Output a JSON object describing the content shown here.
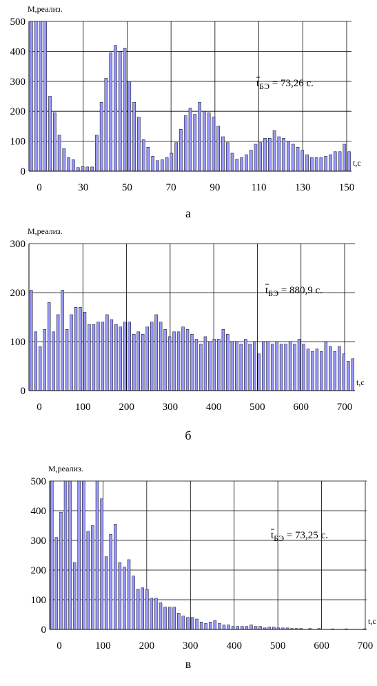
{
  "chart_data": [
    {
      "type": "bar",
      "y_label": "M,реализ.",
      "x_label": "t,c",
      "caption": "а",
      "annotation": {
        "symbol": "t",
        "subscript": "БЭ",
        "text": " = 73,26 с."
      },
      "values": [
        500,
        500,
        500,
        500,
        250,
        195,
        120,
        75,
        45,
        38,
        12,
        15,
        14,
        14,
        120,
        230,
        310,
        395,
        420,
        400,
        410,
        300,
        230,
        180,
        105,
        80,
        50,
        35,
        38,
        45,
        60,
        95,
        140,
        185,
        210,
        190,
        230,
        200,
        195,
        180,
        150,
        115,
        95,
        60,
        40,
        45,
        55,
        70,
        90,
        95,
        110,
        110,
        135,
        115,
        110,
        100,
        90,
        80,
        70,
        55,
        45,
        45,
        45,
        50,
        55,
        65,
        65,
        90,
        65
      ],
      "color": "#9999ff",
      "ylim": [
        0,
        500
      ],
      "yticks": [
        0,
        100,
        200,
        300,
        400,
        500
      ],
      "xticks": [
        0,
        30,
        50,
        70,
        90,
        110,
        130,
        150
      ],
      "grid": true
    },
    {
      "type": "bar",
      "y_label": "M,реализ.",
      "x_label": "t,c",
      "caption": "б",
      "annotation": {
        "symbol": "t",
        "subscript": "БЭ",
        "text": " = 880,9 с."
      },
      "values": [
        205,
        120,
        90,
        125,
        180,
        120,
        155,
        205,
        125,
        155,
        170,
        170,
        160,
        135,
        135,
        140,
        140,
        155,
        145,
        135,
        130,
        140,
        140,
        115,
        120,
        115,
        130,
        140,
        155,
        140,
        125,
        110,
        120,
        120,
        130,
        125,
        115,
        105,
        95,
        110,
        100,
        105,
        105,
        125,
        115,
        100,
        100,
        95,
        105,
        95,
        100,
        75,
        100,
        100,
        95,
        100,
        95,
        95,
        100,
        95,
        105,
        95,
        85,
        80,
        85,
        80,
        100,
        90,
        80,
        90,
        75,
        60,
        65
      ],
      "color": "#9999ff",
      "ylim": [
        0,
        300
      ],
      "yticks": [
        0,
        100,
        200,
        300
      ],
      "xticks": [
        0,
        100,
        200,
        300,
        400,
        500,
        600,
        700
      ],
      "grid": true
    },
    {
      "type": "bar",
      "y_label": "M,реализ.",
      "x_label": "t,c",
      "caption": "в",
      "annotation": {
        "symbol": "t",
        "subscript": "БЭ",
        "text": " = 73,25 с."
      },
      "values": [
        500,
        310,
        395,
        500,
        500,
        225,
        500,
        500,
        330,
        350,
        500,
        440,
        245,
        320,
        355,
        225,
        210,
        235,
        180,
        135,
        140,
        135,
        105,
        105,
        90,
        75,
        75,
        75,
        55,
        45,
        40,
        40,
        35,
        25,
        20,
        25,
        30,
        20,
        15,
        15,
        10,
        10,
        10,
        10,
        15,
        10,
        10,
        5,
        8,
        8,
        5,
        5,
        5,
        3,
        3,
        3,
        0,
        3,
        0,
        3,
        0,
        0,
        2,
        0,
        0,
        2,
        0,
        0,
        0,
        2
      ],
      "color": "#9999ff",
      "ylim": [
        0,
        500
      ],
      "yticks": [
        0,
        100,
        200,
        300,
        400,
        500
      ],
      "xticks": [
        0,
        100,
        200,
        300,
        400,
        500,
        600,
        700
      ],
      "grid": true
    }
  ]
}
